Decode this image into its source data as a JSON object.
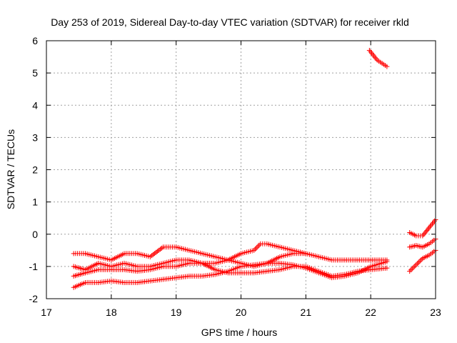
{
  "chart_data": {
    "type": "scatter",
    "title": "Day 253 of 2019, Sidereal Day-to-day VTEC variation (SDTVAR) for receiver rkld",
    "xlabel": "GPS time / hours",
    "ylabel": "SDTVAR / TECUs",
    "xlim": [
      17,
      23
    ],
    "ylim": [
      -2,
      6
    ],
    "xticks": [
      "17",
      "18",
      "19",
      "20",
      "21",
      "22",
      "23"
    ],
    "yticks": [
      "-2",
      "-1",
      "0",
      "1",
      "2",
      "3",
      "4",
      "5",
      "6"
    ],
    "grid": true,
    "marker": "+",
    "color": "#ff0000",
    "series": [
      {
        "x": [
          17.42,
          17.6,
          17.8,
          18.0,
          18.2,
          18.4,
          18.6,
          18.8,
          19.0,
          19.2,
          19.4,
          19.6,
          19.8,
          20.0,
          20.2,
          20.4,
          20.6,
          20.8,
          21.0,
          21.2,
          21.4,
          21.6,
          21.8,
          22.0,
          22.25
        ],
        "y": [
          -0.6,
          -0.6,
          -0.7,
          -0.8,
          -0.6,
          -0.6,
          -0.7,
          -0.4,
          -0.4,
          -0.5,
          -0.6,
          -0.7,
          -0.8,
          -0.9,
          -1.0,
          -0.9,
          -0.7,
          -0.6,
          -0.6,
          -0.7,
          -0.8,
          -0.8,
          -0.8,
          -0.8,
          -0.8
        ]
      },
      {
        "x": [
          17.42,
          17.6,
          17.8,
          18.0,
          18.2,
          18.4,
          18.6,
          18.8,
          19.0,
          19.2,
          19.4,
          19.6,
          19.8,
          20.0,
          20.2,
          20.3,
          20.4,
          20.6,
          20.8,
          21.0
        ],
        "y": [
          -1.0,
          -1.1,
          -0.9,
          -1.0,
          -0.9,
          -1.0,
          -1.0,
          -0.9,
          -0.8,
          -0.8,
          -0.9,
          -0.9,
          -0.8,
          -0.6,
          -0.5,
          -0.3,
          -0.3,
          -0.4,
          -0.5,
          -0.6
        ]
      },
      {
        "x": [
          17.42,
          17.6,
          17.8,
          18.0,
          18.2,
          18.4,
          18.6,
          18.8,
          19.0,
          19.2,
          19.4,
          19.6,
          19.8,
          20.0,
          20.2,
          20.4,
          20.6,
          20.8,
          21.0,
          21.2,
          21.4,
          21.6,
          21.8,
          22.0,
          22.25
        ],
        "y": [
          -1.3,
          -1.2,
          -1.1,
          -1.1,
          -1.1,
          -1.15,
          -1.1,
          -1.0,
          -1.0,
          -0.9,
          -0.9,
          -1.1,
          -1.2,
          -1.2,
          -1.2,
          -1.15,
          -1.1,
          -1.0,
          -1.0,
          -1.15,
          -1.3,
          -1.25,
          -1.15,
          -1.1,
          -1.05
        ]
      },
      {
        "x": [
          17.42,
          17.6,
          17.8,
          18.0,
          18.2,
          18.4,
          18.6,
          18.8,
          19.0,
          19.2,
          19.4,
          19.6,
          19.8,
          20.0,
          20.2,
          20.4,
          20.6,
          20.8,
          21.0,
          21.2,
          21.4,
          21.6,
          21.8,
          22.0,
          22.25
        ],
        "y": [
          -1.65,
          -1.5,
          -1.5,
          -1.45,
          -1.5,
          -1.5,
          -1.45,
          -1.4,
          -1.35,
          -1.3,
          -1.3,
          -1.25,
          -1.15,
          -1.0,
          -0.95,
          -0.9,
          -0.9,
          -0.95,
          -1.05,
          -1.2,
          -1.35,
          -1.3,
          -1.2,
          -1.0,
          -0.85
        ]
      },
      {
        "x": [
          21.98,
          22.1,
          22.25
        ],
        "y": [
          5.7,
          5.4,
          5.2
        ]
      },
      {
        "x": [
          22.6,
          22.7,
          22.8,
          22.9,
          23.0
        ],
        "y": [
          0.05,
          -0.05,
          -0.05,
          0.2,
          0.45
        ]
      },
      {
        "x": [
          22.6,
          22.7,
          22.8,
          22.9,
          23.0
        ],
        "y": [
          -0.4,
          -0.35,
          -0.4,
          -0.3,
          -0.15
        ]
      },
      {
        "x": [
          22.6,
          22.7,
          22.8,
          22.9,
          23.0
        ],
        "y": [
          -1.15,
          -0.95,
          -0.75,
          -0.65,
          -0.5
        ]
      }
    ]
  }
}
